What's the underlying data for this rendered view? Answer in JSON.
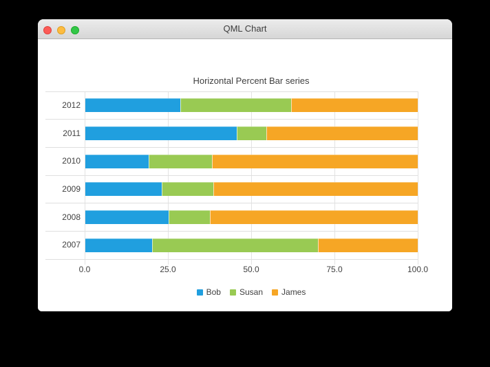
{
  "window": {
    "title": "QML Chart",
    "traffic_lights": [
      {
        "name": "close",
        "color": "#fc5b57"
      },
      {
        "name": "minimize",
        "color": "#fdbc40"
      },
      {
        "name": "zoom",
        "color": "#33c748"
      }
    ]
  },
  "chart_data": {
    "type": "bar",
    "orientation": "horizontal",
    "stacking": "percent",
    "title": "Horizontal Percent Bar series",
    "categories": [
      "2012",
      "2011",
      "2010",
      "2009",
      "2008",
      "2007"
    ],
    "series": [
      {
        "name": "Bob",
        "color": "#209fdf",
        "values": [
          6,
          5,
          4,
          3,
          2,
          2
        ]
      },
      {
        "name": "Susan",
        "color": "#99ca53",
        "values": [
          7,
          1,
          4,
          2,
          1,
          5
        ]
      },
      {
        "name": "James",
        "color": "#f6a625",
        "values": [
          8,
          5,
          13,
          8,
          5,
          3
        ]
      }
    ],
    "x_ticks": [
      "0.0",
      "25.0",
      "50.0",
      "75.0",
      "100.0"
    ],
    "xlim": [
      0,
      100
    ],
    "grid": true,
    "legend_position": "bottom"
  }
}
